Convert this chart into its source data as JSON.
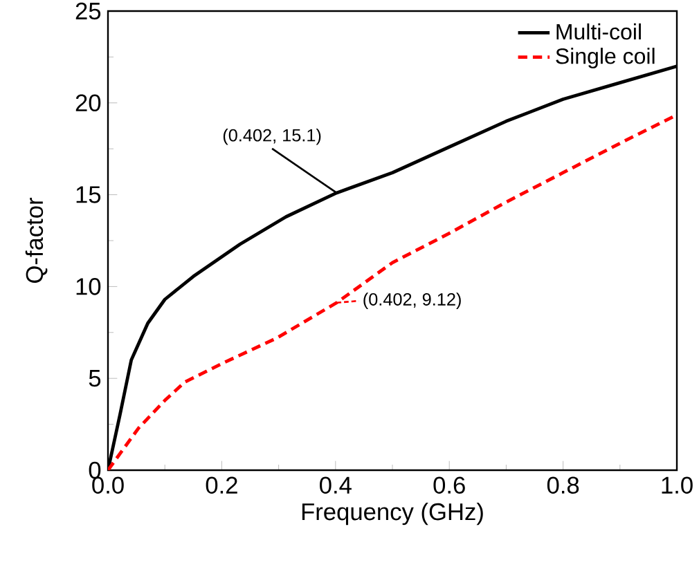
{
  "chart_data": {
    "type": "line",
    "xlabel": "Frequency (GHz)",
    "ylabel": "Q-factor",
    "xlim": [
      0,
      1
    ],
    "ylim": [
      0,
      25
    ],
    "xticks": [
      {
        "value": 0,
        "label": "0.0"
      },
      0.2,
      0.4,
      0.6,
      0.8,
      {
        "value": 1,
        "label": "1.0"
      }
    ],
    "yticks": [
      0,
      5,
      10,
      15,
      20,
      25
    ],
    "legend": "top right",
    "grid": false,
    "series": [
      {
        "name": "Multi-coil",
        "color": "#000000",
        "line_style": "solid",
        "x": [
          0,
          0.021,
          0.041,
          0.07,
          0.1,
          0.15,
          0.232,
          0.313,
          0.402,
          0.5,
          0.6,
          0.7,
          0.8,
          0.9,
          1.0
        ],
        "values": [
          0,
          3.0,
          6.0,
          8.0,
          9.3,
          10.55,
          12.3,
          13.8,
          15.1,
          16.2,
          17.6,
          19.0,
          20.2,
          21.1,
          22.0
        ]
      },
      {
        "name": "Single coil",
        "color": "#ff0000",
        "line_style": "dashed",
        "x": [
          0,
          0.054,
          0.1,
          0.135,
          0.2,
          0.297,
          0.402,
          0.5,
          0.6,
          0.7,
          0.8,
          0.9,
          1.0
        ],
        "values": [
          0,
          2.3,
          3.8,
          4.8,
          5.8,
          7.2,
          9.12,
          11.3,
          12.9,
          14.6,
          16.2,
          17.8,
          19.35
        ]
      }
    ],
    "annotations": [
      {
        "text": "(0.402, 15.1)",
        "x": 0.402,
        "y": 15.1
      },
      {
        "text": "(0.402, 9.12)",
        "x": 0.402,
        "y": 9.12
      }
    ]
  }
}
